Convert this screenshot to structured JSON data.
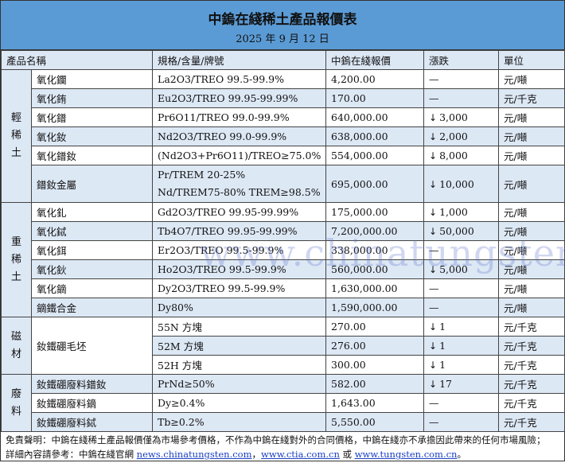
{
  "title": "中鎢在綫稀土產品報價表",
  "date": "2025 年 9 月 12 日",
  "headers": {
    "name": "產品名稱",
    "spec": "規格/含量/牌號",
    "price": "中鎢在綫報價",
    "change": "漲跌",
    "unit": "單位"
  },
  "groups": {
    "light": "輕稀土",
    "heavy": "重稀土",
    "magnet": "磁材",
    "waste": "廢料"
  },
  "rows": [
    {
      "name": "氧化鑭",
      "spec": "La2O3/TREO 99.5-99.9%",
      "price": "4,200.00",
      "change": "—",
      "unit": "元/噸"
    },
    {
      "name": "氧化銪",
      "spec": "Eu2O3/TREO 99.95-99.99%",
      "price": "170.00",
      "change": "—",
      "unit": "元/千克"
    },
    {
      "name": "氧化鐠",
      "spec": "Pr6O11/TREO 99.0-99.9%",
      "price": "640,000.00",
      "change": "3,000",
      "unit": "元/噸"
    },
    {
      "name": "氧化釹",
      "spec": "Nd2O3/TREO 99.0-99.9%",
      "price": "638,000.00",
      "change": "2,000",
      "unit": "元/噸"
    },
    {
      "name": "氧化鐠釹",
      "spec": "(Nd2O3+Pr6O11)/TREO≥75.0%",
      "price": "554,000.00",
      "change": "8,000",
      "unit": "元/噸"
    },
    {
      "name": "鐠釹金屬",
      "spec": "Pr/TREM 20-25%",
      "spec2": "Nd/TREM75-80% TREM≥98.5%",
      "price": "695,000.00",
      "change": "10,000",
      "unit": "元/噸"
    },
    {
      "name": "氧化釓",
      "spec": "Gd2O3/TREO 99.95-99.99%",
      "price": "175,000.00",
      "change": "1,000",
      "unit": "元/噸"
    },
    {
      "name": "氧化鋱",
      "spec": "Tb4O7/TREO 99.95-99.99%",
      "price": "7,200,000.00",
      "change": "50,000",
      "unit": "元/噸"
    },
    {
      "name": "氧化鉺",
      "spec": "Er2O3/TREO 99.5-99.9%",
      "price": "338,000.00",
      "change": "—",
      "unit": "元/噸"
    },
    {
      "name": "氧化鈥",
      "spec": "Ho2O3/TREO 99.5-99.9%",
      "price": "560,000.00",
      "change": "5,000",
      "unit": "元/噸"
    },
    {
      "name": "氧化鏑",
      "spec": "Dy2O3/TREO 99.5-99.9%",
      "price": "1,630,000.00",
      "change": "—",
      "unit": "元/噸"
    },
    {
      "name": "鏑鐵合金",
      "spec": "Dy80%",
      "price": "1,590,000.00",
      "change": "—",
      "unit": "元/噸"
    },
    {
      "name": "釹鐵硼毛坯",
      "spec": "55N 方塊",
      "price": "270.00",
      "change": "1",
      "unit": "元/千克"
    },
    {
      "spec": "52M 方塊",
      "price": "276.00",
      "change": "1",
      "unit": "元/千克"
    },
    {
      "spec": "52H 方塊",
      "price": "300.00",
      "change": "1",
      "unit": "元/千克"
    },
    {
      "name": "釹鐵硼廢料鐠釹",
      "spec": "PrNd≥50%",
      "price": "582.00",
      "change": "17",
      "unit": "元/千克"
    },
    {
      "name": "釹鐵硼廢料鏑",
      "spec": "Dy≥0.4%",
      "price": "1,643.00",
      "change": "—",
      "unit": "元/千克"
    },
    {
      "name": "釹鐵硼廢料鋱",
      "spec": "Tb≥0.2%",
      "price": "5,550.00",
      "change": "—",
      "unit": "元/千克"
    }
  ],
  "down_arrow": "↓",
  "footer": {
    "disclaimer": "免責聲明：中鎢在綫稀土產品報價僅為市場參考價格，不作為中鎢在綫對外的合同價格，中鎢在綫亦不承擔因此帶來的任何市場風險；",
    "ref_prefix": "詳細內容請參考：中鎢在綫官網 ",
    "link1": "news.chinatungsten.com",
    "sep1": "，",
    "link2": "www.ctia.com.cn",
    "sep2": " 或 ",
    "link3": "www.tungsten.com.cn",
    "end": "。"
  },
  "watermark": "www.chinatungsten.com",
  "colors": {
    "title_bg": "#5b9bd5",
    "stripe": "#dde8f5",
    "link": "#1a3fc4"
  }
}
